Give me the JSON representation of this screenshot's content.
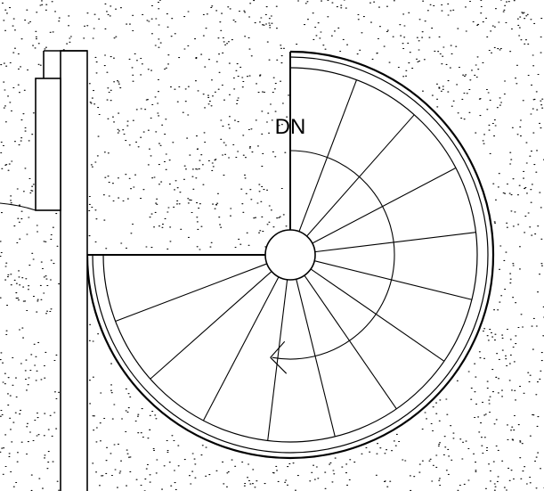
{
  "direction_label": "DN",
  "stair": {
    "type": "spiral",
    "tread_count": 13,
    "turn": "clockwise"
  },
  "colors": {
    "line": "#000000",
    "background": "#ffffff",
    "hatch": "#000000"
  }
}
